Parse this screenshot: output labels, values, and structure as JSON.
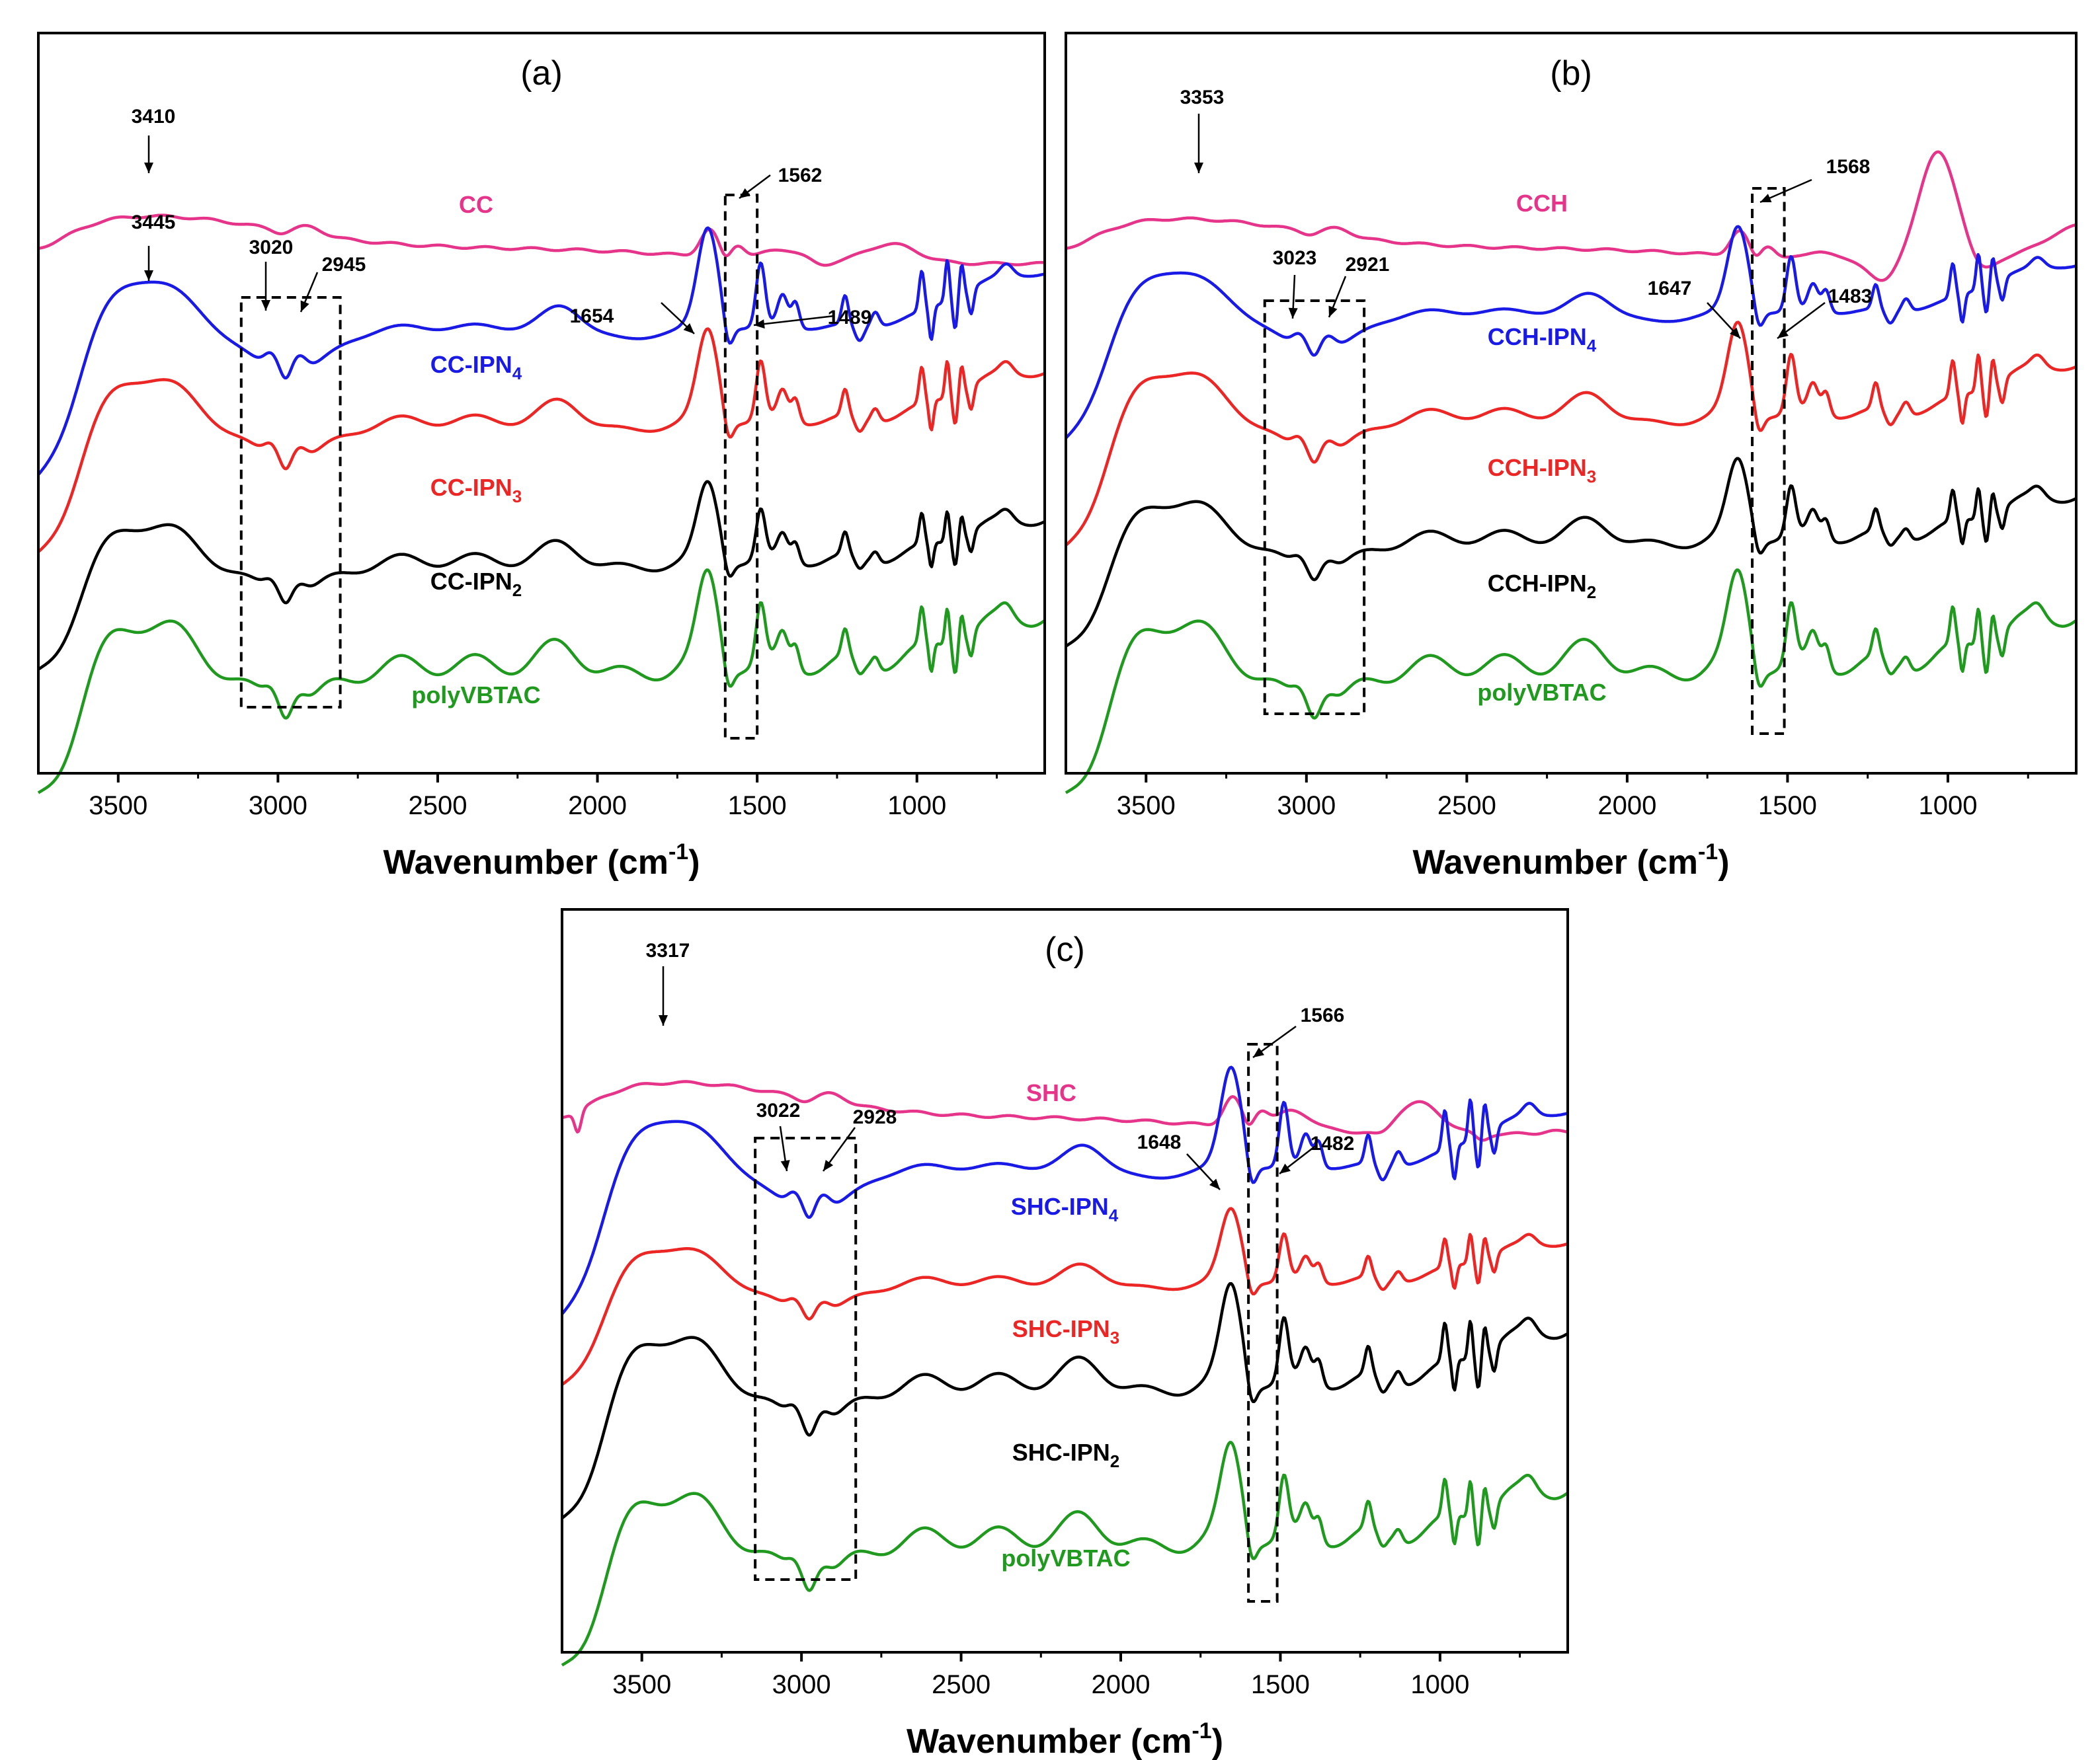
{
  "chart_data": [
    {
      "panel": "(a)",
      "type": "line",
      "xlabel": "Wavenumber (cm",
      "xlabel_sup": "-1",
      "xlabel_end": ")",
      "xlim": [
        3750,
        600
      ],
      "xticks": [
        3500,
        3000,
        2500,
        2000,
        1500,
        1000
      ],
      "series": [
        {
          "name": "CC",
          "color": "#e6348a"
        },
        {
          "name": "CC-IPN",
          "sub": "4",
          "color": "#1a1ae6"
        },
        {
          "name": "CC-IPN",
          "sub": "3",
          "color": "#ec2525"
        },
        {
          "name": "CC-IPN",
          "sub": "2",
          "color": "#000000"
        },
        {
          "name": "polyVBTAC",
          "color": "#1f9a1f"
        }
      ],
      "annotations": [
        "3410",
        "3445",
        "3020",
        "2945",
        "1654",
        "1562",
        "1489"
      ]
    },
    {
      "panel": "(b)",
      "type": "line",
      "xlabel": "Wavenumber (cm",
      "xlabel_sup": "-1",
      "xlabel_end": ")",
      "xlim": [
        3750,
        600
      ],
      "xticks": [
        3500,
        3000,
        2500,
        2000,
        1500,
        1000
      ],
      "series": [
        {
          "name": "CCH",
          "color": "#e6348a"
        },
        {
          "name": "CCH-IPN",
          "sub": "4",
          "color": "#1a1ae6"
        },
        {
          "name": "CCH-IPN",
          "sub": "3",
          "color": "#ec2525"
        },
        {
          "name": "CCH-IPN",
          "sub": "2",
          "color": "#000000"
        },
        {
          "name": "polyVBTAC",
          "color": "#1f9a1f"
        }
      ],
      "annotations": [
        "3353",
        "3023",
        "2921",
        "1647",
        "1568",
        "1483"
      ]
    },
    {
      "panel": "(c)",
      "type": "line",
      "xlabel": "Wavenumber (cm",
      "xlabel_sup": "-1",
      "xlabel_end": ")",
      "xlim": [
        3750,
        600
      ],
      "xticks": [
        3500,
        3000,
        2500,
        2000,
        1500,
        1000
      ],
      "series": [
        {
          "name": "SHC",
          "color": "#e6348a"
        },
        {
          "name": "SHC-IPN",
          "sub": "4",
          "color": "#1a1ae6"
        },
        {
          "name": "SHC-IPN",
          "sub": "3",
          "color": "#ec2525"
        },
        {
          "name": "SHC-IPN",
          "sub": "2",
          "color": "#000000"
        },
        {
          "name": "polyVBTAC",
          "color": "#1f9a1f"
        }
      ],
      "annotations": [
        "3317",
        "3022",
        "2928",
        "1648",
        "1566",
        "1482"
      ]
    }
  ]
}
